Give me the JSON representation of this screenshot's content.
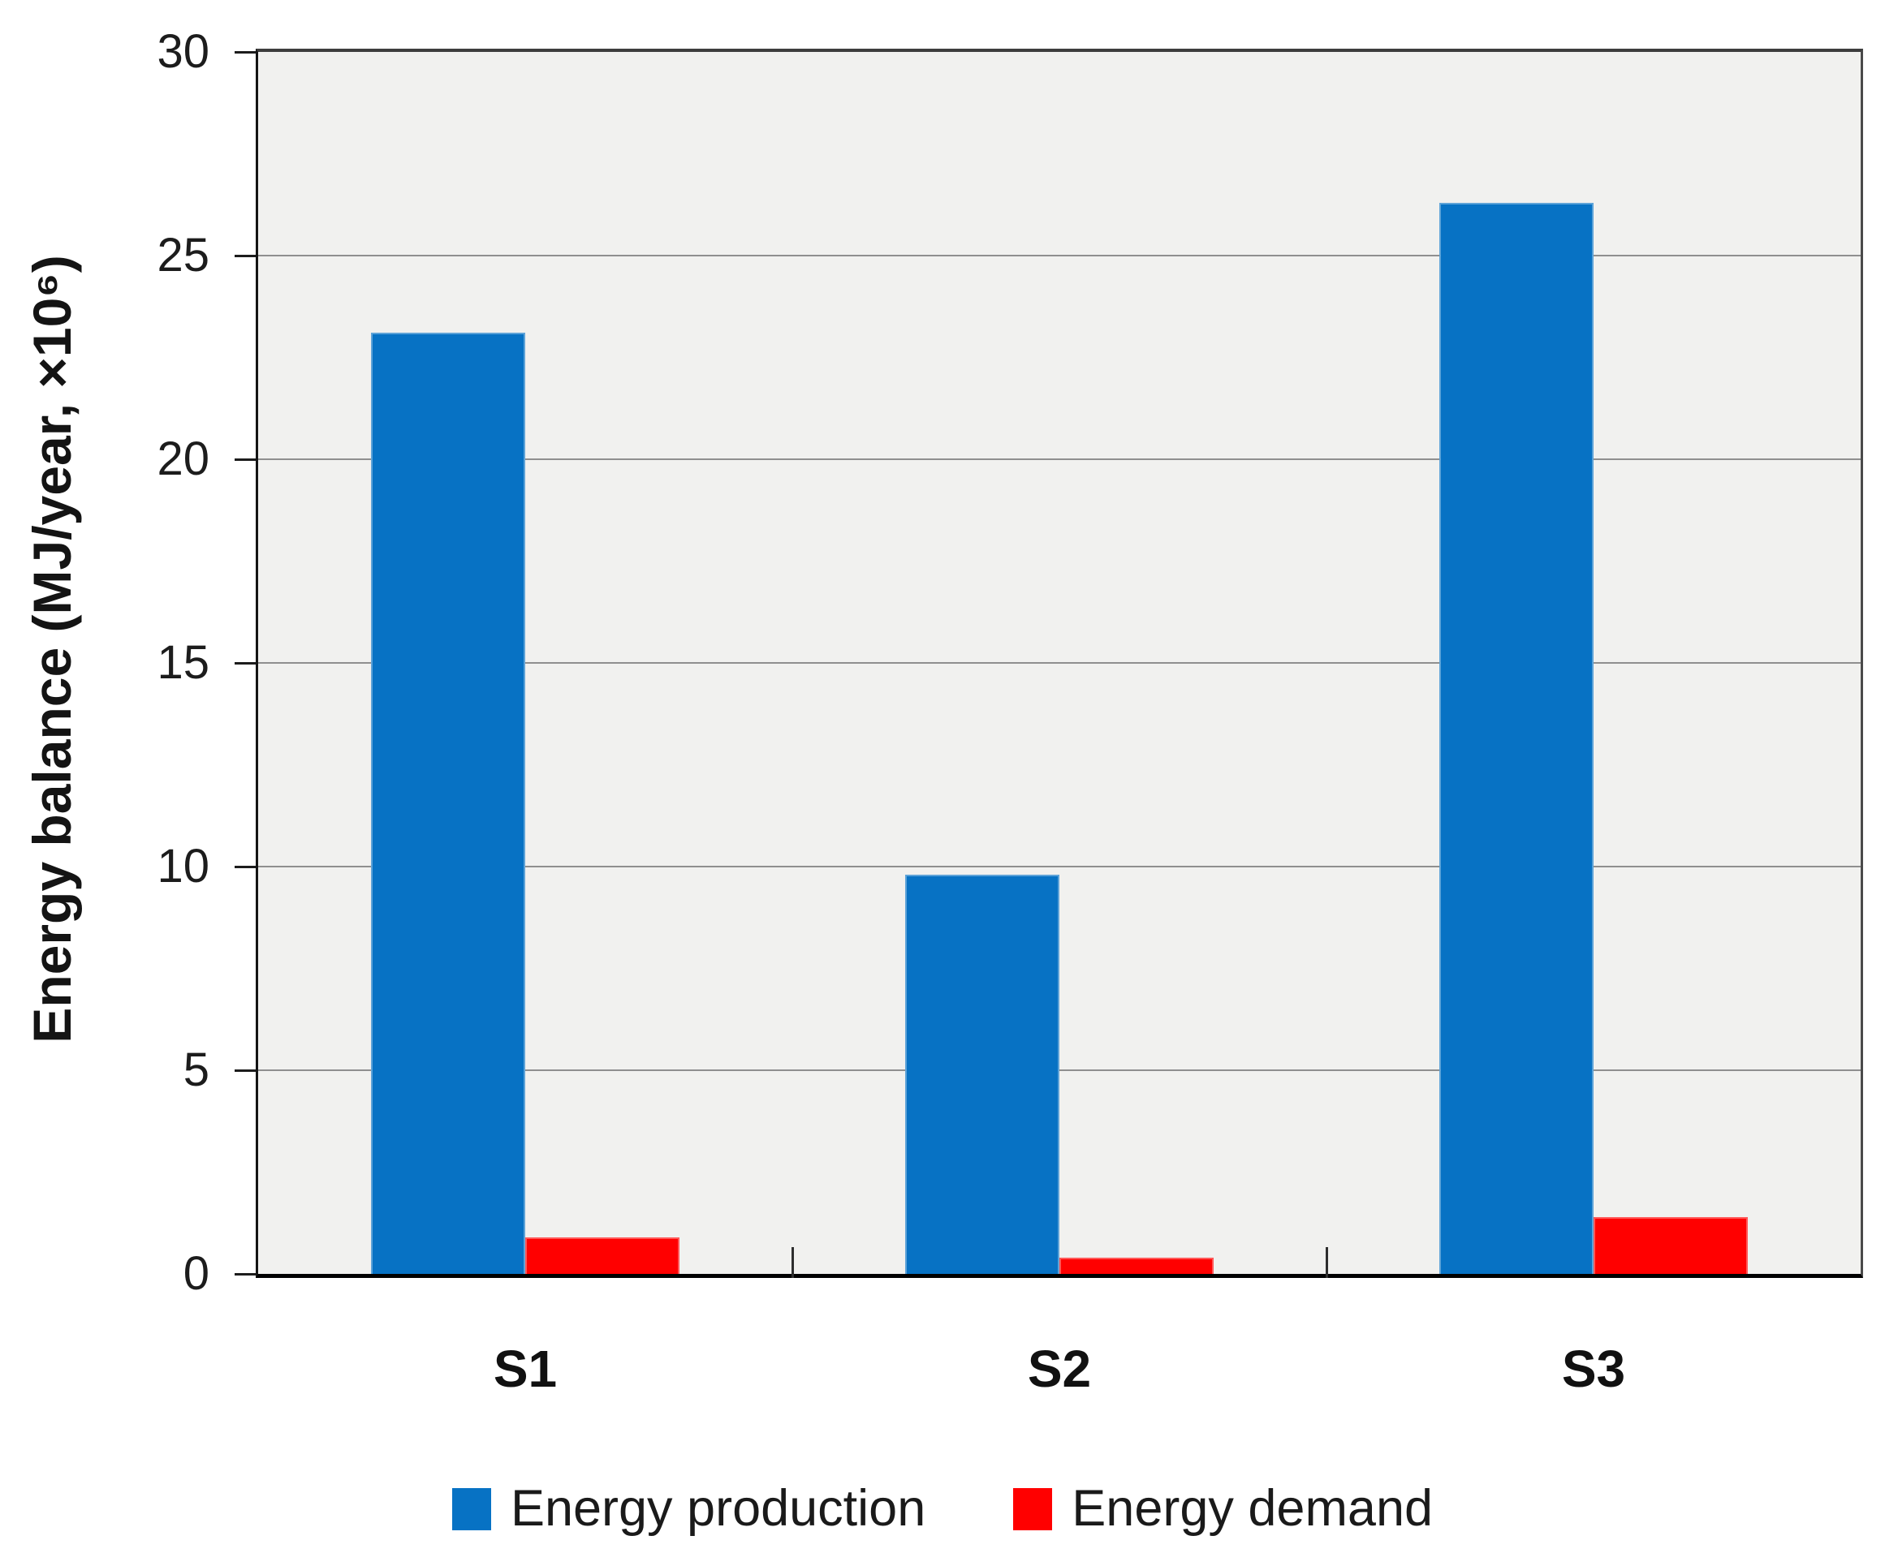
{
  "chart_data": {
    "type": "bar",
    "title": "",
    "categories": [
      "S1",
      "S2",
      "S3"
    ],
    "series": [
      {
        "name": "Energy production",
        "color": "#0772C4",
        "values": [
          23.1,
          9.8,
          26.3
        ]
      },
      {
        "name": "Energy demand",
        "color": "#FF0000",
        "values": [
          0.9,
          0.4,
          1.4
        ]
      }
    ],
    "xlabel": "",
    "ylabel": "Energy balance (MJ/year, ×10⁶)",
    "ylim": [
      0,
      30
    ],
    "yticks": [
      0,
      5,
      10,
      15,
      20,
      25,
      30
    ],
    "grid": true,
    "gridline_color": "#8f8f8f",
    "plot_background": "#F1F1EF",
    "axis_color": "#000000",
    "legend_position": "bottom"
  }
}
